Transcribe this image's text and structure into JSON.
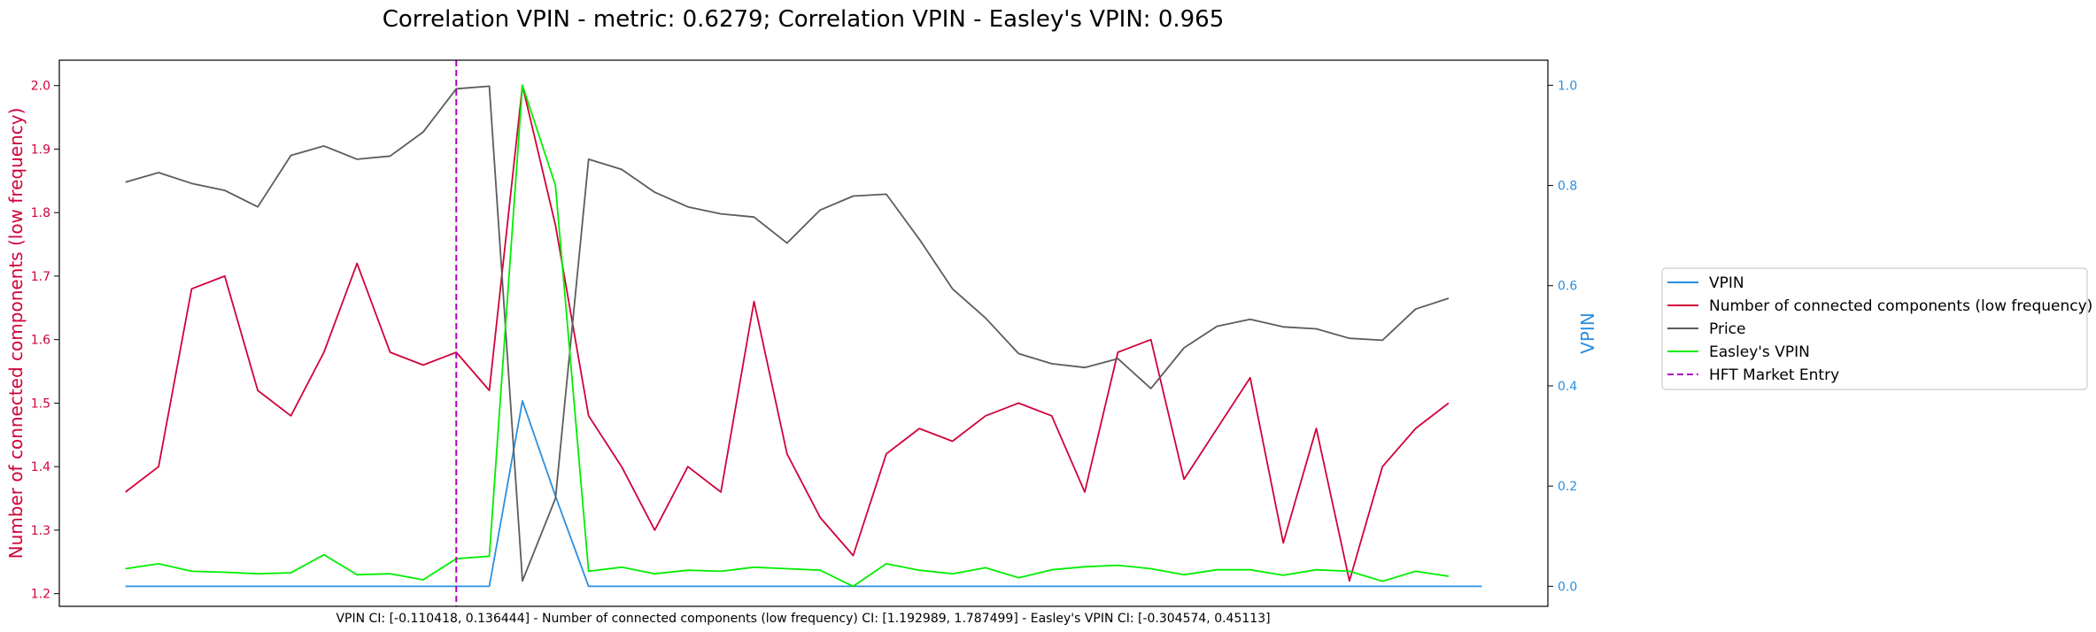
{
  "chart_data": {
    "type": "line",
    "title": "Correlation VPIN - metric: 0.6279; Correlation VPIN - Easley's VPIN: 0.965",
    "footer": "VPIN CI: [-0.110418, 0.136444] - Number of connected components (low frequency) CI: [1.192989, 1.787499] - Easley's VPIN CI: [-0.304574, 0.45113]",
    "left_axis": {
      "label": "Number of connected components (low frequency)",
      "color": "#d0033a",
      "ylim": [
        1.18,
        2.04
      ],
      "ticks": [
        "1.2",
        "1.3",
        "1.4",
        "1.5",
        "1.6",
        "1.7",
        "1.8",
        "1.9",
        "2.0"
      ]
    },
    "right_axis": {
      "label": "VPIN",
      "color": "#2a8fe0",
      "ylim": [
        -0.04,
        1.05
      ],
      "ticks": [
        "0.0",
        "0.2",
        "0.4",
        "0.6",
        "0.8",
        "1.0"
      ]
    },
    "xlim": [
      -2,
      43
    ],
    "x": [
      0,
      1,
      2,
      3,
      4,
      5,
      6,
      7,
      8,
      9,
      10,
      11,
      12,
      13,
      14,
      15,
      16,
      17,
      18,
      19,
      20,
      21,
      22,
      23,
      24,
      25,
      26,
      27,
      28,
      29,
      30,
      31,
      32,
      33,
      34,
      35,
      36,
      37,
      38,
      39,
      40,
      41
    ],
    "series": [
      {
        "name": "VPIN",
        "axis": "right",
        "color": "#2a8fe0",
        "style": "solid",
        "values": [
          0,
          0,
          0,
          0,
          0,
          0,
          0,
          0,
          0,
          0,
          0,
          0,
          0.37,
          0.18,
          0,
          0,
          0,
          0,
          0,
          0,
          0,
          0,
          0,
          0,
          0,
          0,
          0,
          0,
          0,
          0,
          0,
          0,
          0,
          0,
          0,
          0,
          0,
          0,
          0,
          0,
          0,
          0
        ]
      },
      {
        "name": "Number of connected components (low frequency)",
        "axis": "left",
        "color": "#d0033a",
        "style": "solid",
        "values": [
          1.36,
          1.4,
          1.68,
          1.7,
          1.52,
          1.48,
          1.58,
          1.72,
          1.58,
          1.56,
          1.58,
          1.52,
          2.0,
          1.78,
          1.48,
          1.4,
          1.3,
          1.4,
          1.36,
          1.66,
          1.42,
          1.32,
          1.26,
          1.42,
          1.46,
          1.44,
          1.48,
          1.5,
          1.48,
          1.36,
          1.58,
          1.6,
          1.38,
          1.46,
          1.54,
          1.28,
          1.46,
          1.22,
          1.4,
          1.46,
          1.5,
          null
        ]
      },
      {
        "name": "Price",
        "axis": "left",
        "color": "#5c5c5c",
        "style": "solid",
        "values": [
          1.848,
          1.863,
          1.846,
          1.835,
          1.809,
          1.89,
          1.905,
          1.884,
          1.889,
          1.927,
          1.995,
          1.999,
          1.22,
          1.35,
          1.884,
          1.868,
          1.832,
          1.809,
          1.798,
          1.793,
          1.752,
          1.804,
          1.826,
          1.829,
          1.758,
          1.68,
          1.634,
          1.578,
          1.562,
          1.556,
          1.57,
          1.523,
          1.587,
          1.621,
          1.632,
          1.62,
          1.617,
          1.602,
          1.599,
          1.648,
          1.665,
          null
        ]
      },
      {
        "name": "Easley's VPIN",
        "axis": "right",
        "color": "#00ee00",
        "style": "solid",
        "values": [
          0.035,
          0.045,
          0.03,
          0.028,
          0.025,
          0.027,
          0.063,
          0.023,
          0.025,
          0.013,
          0.055,
          0.06,
          1.0,
          0.8,
          0.03,
          0.038,
          0.025,
          0.032,
          0.03,
          0.038,
          0.035,
          0.032,
          0.0,
          0.045,
          0.032,
          0.025,
          0.037,
          0.017,
          0.033,
          0.039,
          0.042,
          0.035,
          0.023,
          0.033,
          0.033,
          0.022,
          0.033,
          0.03,
          0.01,
          0.03,
          0.02,
          null
        ]
      }
    ],
    "vline": {
      "name": "HFT Market Entry",
      "x": 10,
      "color": "#b000c0",
      "style": "dashed"
    },
    "legend": {
      "placement": "right",
      "entries": [
        "VPIN",
        "Number of connected components (low frequency)",
        "Price",
        "Easley's VPIN",
        "HFT Market Entry"
      ]
    }
  }
}
